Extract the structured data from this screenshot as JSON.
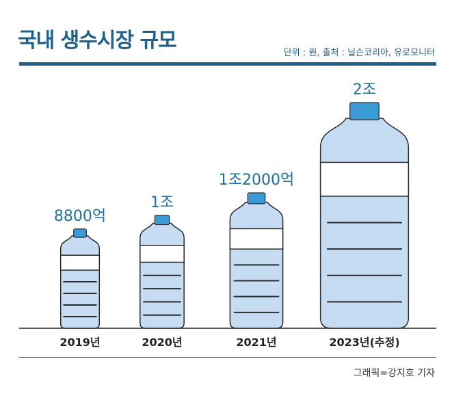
{
  "header": {
    "title": "국내 생수시장 규모",
    "source": "단위 : 원, 출처 : 닐슨코리아, 유로모니터"
  },
  "footer": {
    "credit": "그래픽=강지호 기자"
  },
  "colors": {
    "accent": "#1f5f8b",
    "bottle_fill": "#c5dcf2",
    "cap": "#3b9bd6",
    "outline": "#2a2a2a",
    "value_text": "#1f6fa5"
  },
  "chart_data": {
    "type": "bar",
    "title": "국내 생수시장 규모",
    "categories": [
      "2019년",
      "2020년",
      "2021년",
      "2023년(추정)"
    ],
    "values": [
      8800,
      10000,
      12000,
      20000
    ],
    "value_unit": "억 원",
    "data_labels": [
      "8800억",
      "1조",
      "1조2000억",
      "2조"
    ],
    "xlabel": "",
    "ylabel": "",
    "grid": false,
    "legend": "none"
  }
}
